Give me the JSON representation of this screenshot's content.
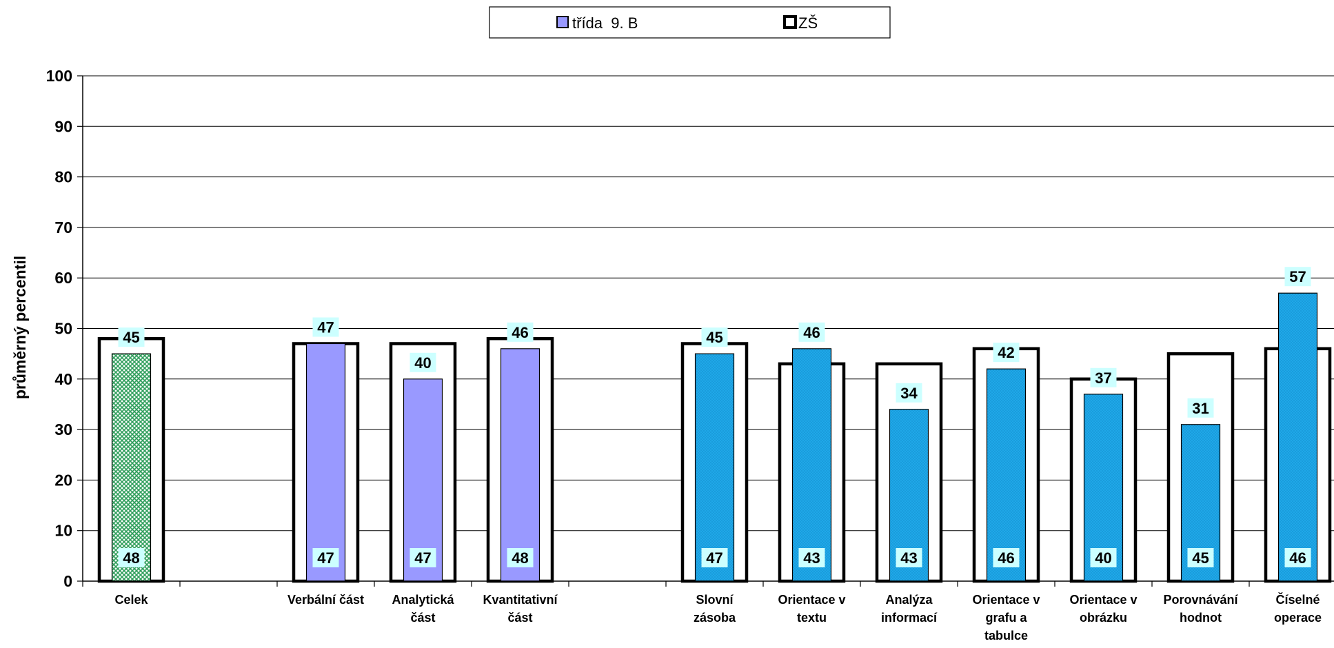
{
  "chart_data": {
    "type": "bar",
    "ylabel": "průměrný percentil",
    "ylim": [
      0,
      100
    ],
    "yticks": [
      0,
      10,
      20,
      30,
      40,
      50,
      60,
      70,
      80,
      90,
      100
    ],
    "grid": true,
    "legend_position": "top-center",
    "categories": [
      "Celek",
      "",
      "Verbální část",
      "Analytická část",
      "Kvantitativní část",
      "",
      "Slovní zásoba",
      "Orientace v textu",
      "Analýza informací",
      "Orientace v grafu a tabulce",
      "Orientace v obrázku",
      "Porovnávání hodnot",
      "Číselné operace"
    ],
    "category_lines": [
      [
        "Celek"
      ],
      [],
      [
        "Verbální část"
      ],
      [
        "Analytická",
        "část"
      ],
      [
        "Kvantitativní",
        "část"
      ],
      [],
      [
        "Slovní",
        "zásoba"
      ],
      [
        "Orientace v",
        "textu"
      ],
      [
        "Analýza",
        "informací"
      ],
      [
        "Orientace v",
        "grafu a",
        "tabulce"
      ],
      [
        "Orientace v",
        "obrázku"
      ],
      [
        "Porovnávání",
        "hodnot"
      ],
      [
        "Číselné",
        "operace"
      ]
    ],
    "series": [
      {
        "name": "třída  9. B",
        "values": [
          45,
          null,
          47,
          40,
          46,
          null,
          45,
          46,
          34,
          42,
          37,
          31,
          57
        ],
        "colors": [
          "#2e9e5b",
          null,
          "#9999ff",
          "#9999ff",
          "#9999ff",
          null,
          "#1fa8e8",
          "#1fa8e8",
          "#1fa8e8",
          "#1fa8e8",
          "#1fa8e8",
          "#1fa8e8",
          "#1fa8e8"
        ]
      },
      {
        "name": "ZŠ",
        "values": [
          48,
          null,
          47,
          47,
          48,
          null,
          47,
          43,
          43,
          46,
          40,
          45,
          46
        ],
        "color": "#ffffff"
      }
    ],
    "label_bg_color": "#ccffff"
  }
}
